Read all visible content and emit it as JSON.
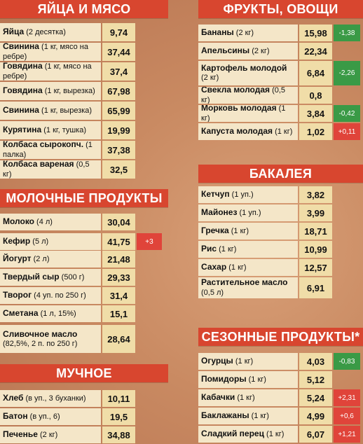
{
  "sections": {
    "meat": {
      "title": "ЯЙЦА И МЯСО",
      "items": [
        {
          "name": "Яйца",
          "note": " (2 десятка)",
          "price": "9,74"
        },
        {
          "name": "Свинина",
          "note": " (1 кг, мясо на ребре)",
          "price": "37,44"
        },
        {
          "name": "Говядина",
          "note": " (1 кг, мясо на ребре)",
          "price": "37,4"
        },
        {
          "name": "Говядина",
          "note": " (1 кг, вырезка)",
          "price": "67,98"
        },
        {
          "name": "Свинина",
          "note": " (1 кг, вырезка)",
          "price": "65,99"
        },
        {
          "name": "Курятина",
          "note": " (1 кг, тушка)",
          "price": "19,99"
        },
        {
          "name": "Колбаса сырокопч.",
          "note": " (1 палка)",
          "price": "37,38"
        },
        {
          "name": "Колбаса вареная",
          "note": " (0,5 кг)",
          "price": "32,5"
        }
      ]
    },
    "dairy": {
      "title": "МОЛОЧНЫЕ ПРОДУКТЫ",
      "items": [
        {
          "name": "Молоко",
          "note": " (4 л)",
          "price": "30,04",
          "delta": ""
        },
        {
          "name": "Кефир",
          "note": " (5 л)",
          "price": "41,75",
          "delta": "+3"
        },
        {
          "name": "Йогурт",
          "note": " (2 л)",
          "price": "21,48",
          "delta": ""
        },
        {
          "name": "Твердый сыр",
          "note": " (500 г)",
          "price": "29,33",
          "delta": ""
        },
        {
          "name": "Творог",
          "note": " (4 уп. по 250 г)",
          "price": "31,4",
          "delta": ""
        },
        {
          "name": "Сметана",
          "note": " (1 л, 15%)",
          "price": "15,1",
          "delta": ""
        },
        {
          "name": "Сливочное масло",
          "note": "(82,5%, 2 п. по 250 г)",
          "price": "28,64",
          "delta": ""
        }
      ]
    },
    "flour": {
      "title": "МУЧНОЕ",
      "items": [
        {
          "name": "Хлеб",
          "note": " (в уп., 3 буханки)",
          "price": "10,11"
        },
        {
          "name": "Батон",
          "note": " (в уп., 6)",
          "price": "19,5"
        },
        {
          "name": "Печенье",
          "note": " (2 кг)",
          "price": "34,88"
        }
      ]
    },
    "fruits": {
      "title": "ФРУКТЫ, ОВОЩИ",
      "items": [
        {
          "name": "Бананы",
          "note": " (2 кг)",
          "price": "15,98",
          "delta": "-1,38"
        },
        {
          "name": "Апельсины",
          "note": " (2 кг)",
          "price": "22,34",
          "delta": ""
        },
        {
          "name": "Картофель молодой",
          "note": "(2 кг)",
          "price": "6,84",
          "delta": "-2,26"
        },
        {
          "name": "Свекла молодая",
          "note": " (0,5 кг)",
          "price": "0,8",
          "delta": ""
        },
        {
          "name": "Морковь молодая",
          "note": " (1 кг)",
          "price": "3,84",
          "delta": "-0,42"
        },
        {
          "name": "Капуста молодая",
          "note": " (1 кг)",
          "price": "1,02",
          "delta": "+0,11"
        }
      ]
    },
    "grocery": {
      "title": "БАКАЛЕЯ",
      "items": [
        {
          "name": "Кетчуп",
          "note": " (1 уп.)",
          "price": "3,82"
        },
        {
          "name": "Майонез",
          "note": " (1 уп.)",
          "price": "3,99"
        },
        {
          "name": "Гречка",
          "note": " (1 кг)",
          "price": "18,71"
        },
        {
          "name": "Рис",
          "note": " (1 кг)",
          "price": "10,99"
        },
        {
          "name": "Сахар",
          "note": " (1 кг)",
          "price": "12,57"
        },
        {
          "name": "Растительное масло",
          "note": " (0,5 л)",
          "price": "6,91"
        }
      ]
    },
    "seasonal": {
      "title": "СЕЗОННЫЕ ПРОДУКТЫ*",
      "items": [
        {
          "name": "Огурцы",
          "note": " (1 кг)",
          "price": "4,03",
          "delta": "-0,83"
        },
        {
          "name": "Помидоры",
          "note": " (1 кг)",
          "price": "5,12",
          "delta": ""
        },
        {
          "name": "Кабачки",
          "note": " (1 кг)",
          "price": "5,24",
          "delta": "+2,31"
        },
        {
          "name": "Баклажаны",
          "note": " (1 кг)",
          "price": "4,99",
          "delta": "+0,6"
        },
        {
          "name": "Сладкий перец",
          "note": " (1 кг)",
          "price": "6,07",
          "delta": "+1,21"
        }
      ]
    }
  },
  "colors": {
    "header": "#d8462f",
    "up": "#e0443a",
    "down": "#3a9a46",
    "cell": "#f4e6c8"
  }
}
